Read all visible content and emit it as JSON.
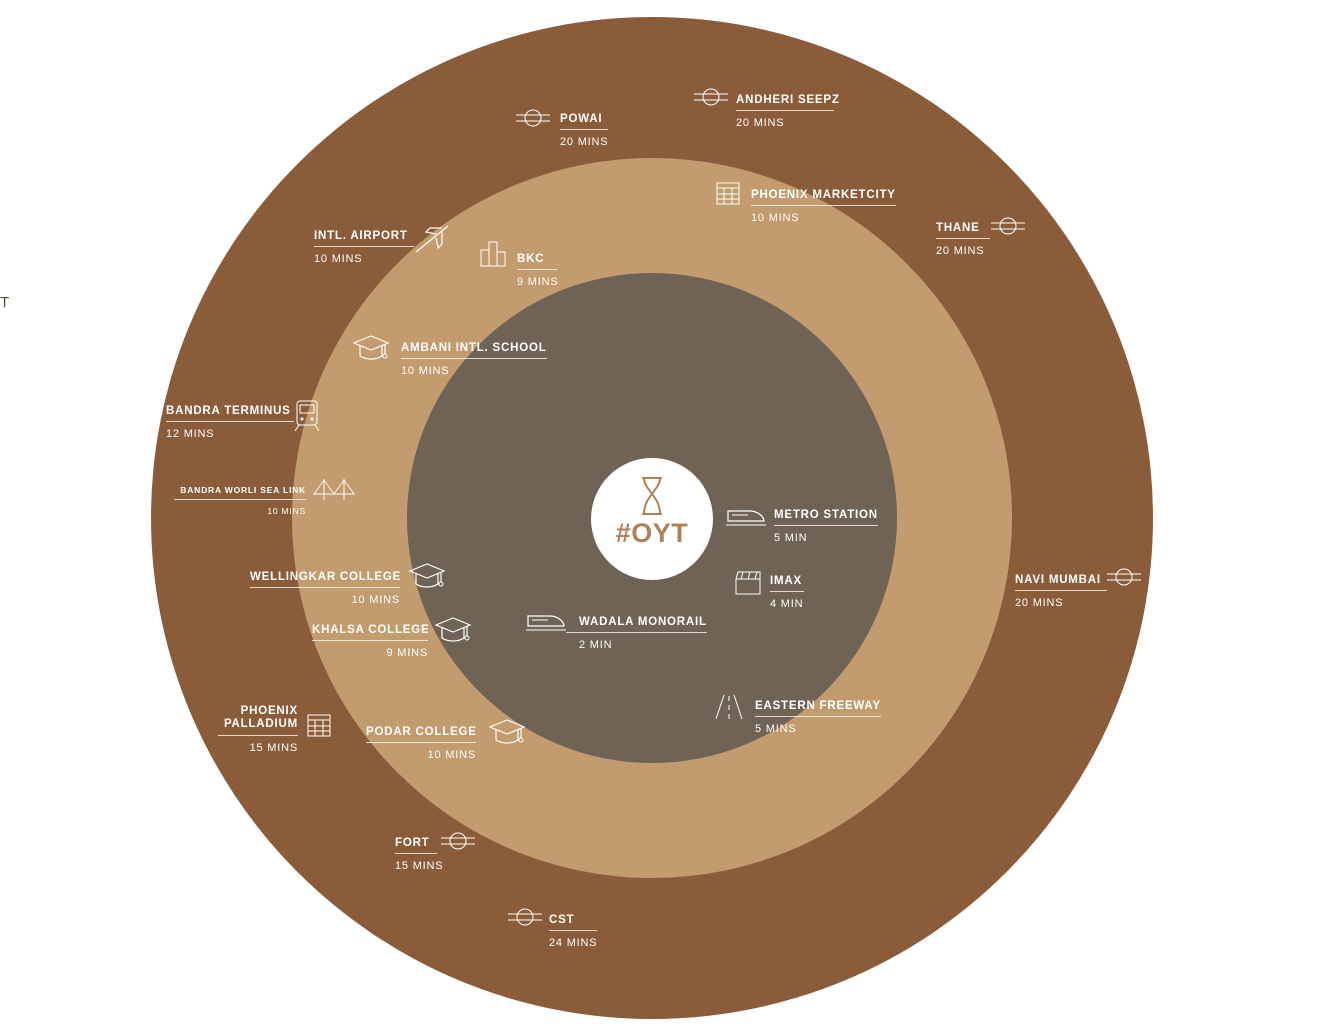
{
  "colors": {
    "outer": "#8b5c3a",
    "middle": "#c29b6e",
    "inner": "#6e6355",
    "logo": "#b08058",
    "text": "#ffffff"
  },
  "edge_text": "T",
  "center": {
    "label": "#OYT",
    "icon": "hourglass-icon"
  },
  "locations": [
    {
      "id": "powai",
      "name": "POWAI",
      "time": "20 MINS",
      "icon": "metro-roundel-icon"
    },
    {
      "id": "andheri",
      "name": "ANDHERI SEEPZ",
      "time": "20 MINS",
      "icon": "metro-roundel-icon"
    },
    {
      "id": "phoenix_marketcity",
      "name": "PHOENIX MARKETCITY",
      "time": "10 MINS",
      "icon": "building-icon"
    },
    {
      "id": "thane",
      "name": "THANE",
      "time": "20 MINS",
      "icon": "metro-roundel-icon"
    },
    {
      "id": "airport",
      "name": "INTL. AIRPORT",
      "time": "10 MINS",
      "icon": "airplane-icon"
    },
    {
      "id": "bkc",
      "name": "BKC",
      "time": "9 MINS",
      "icon": "city-icon"
    },
    {
      "id": "ambani",
      "name": "AMBANI INTL. SCHOOL",
      "time": "10 MINS",
      "icon": "graduation-cap-icon"
    },
    {
      "id": "bandra_terminus",
      "name": "BANDRA TERMINUS",
      "time": "12 MINS",
      "icon": "train-icon"
    },
    {
      "id": "sealink",
      "name": "BANDRA WORLI SEA LINK",
      "time": "10 MINS",
      "icon": "bridge-icon"
    },
    {
      "id": "metro_station",
      "name": "METRO STATION",
      "time": "5 MIN",
      "icon": "bullet-train-icon"
    },
    {
      "id": "wellingkar",
      "name": "WELLINGKAR COLLEGE",
      "time": "10 MINS",
      "icon": "graduation-cap-icon"
    },
    {
      "id": "imax",
      "name": "IMAX",
      "time": "4 MIN",
      "icon": "clapperboard-icon"
    },
    {
      "id": "navi_mumbai",
      "name": "NAVI MUMBAI",
      "time": "20 MINS",
      "icon": "metro-roundel-icon"
    },
    {
      "id": "khalsa",
      "name": "KHALSA COLLEGE",
      "time": "9 MINS",
      "icon": "graduation-cap-icon"
    },
    {
      "id": "wadala",
      "name": "WADALA MONORAIL",
      "time": "2 MIN",
      "icon": "bullet-train-icon"
    },
    {
      "id": "eastern_freeway",
      "name": "EASTERN FREEWAY",
      "time": "5 MINS",
      "icon": "road-icon"
    },
    {
      "id": "phoenix_palladium",
      "name": "PHOENIX PALLADIUM",
      "time": "15 MINS",
      "icon": "building-icon"
    },
    {
      "id": "podar",
      "name": "PODAR COLLEGE",
      "time": "10 MINS",
      "icon": "graduation-cap-icon"
    },
    {
      "id": "fort",
      "name": "FORT",
      "time": "15 MINS",
      "icon": "metro-roundel-icon"
    },
    {
      "id": "cst",
      "name": "CST",
      "time": "24 MINS",
      "icon": "metro-roundel-icon"
    }
  ]
}
